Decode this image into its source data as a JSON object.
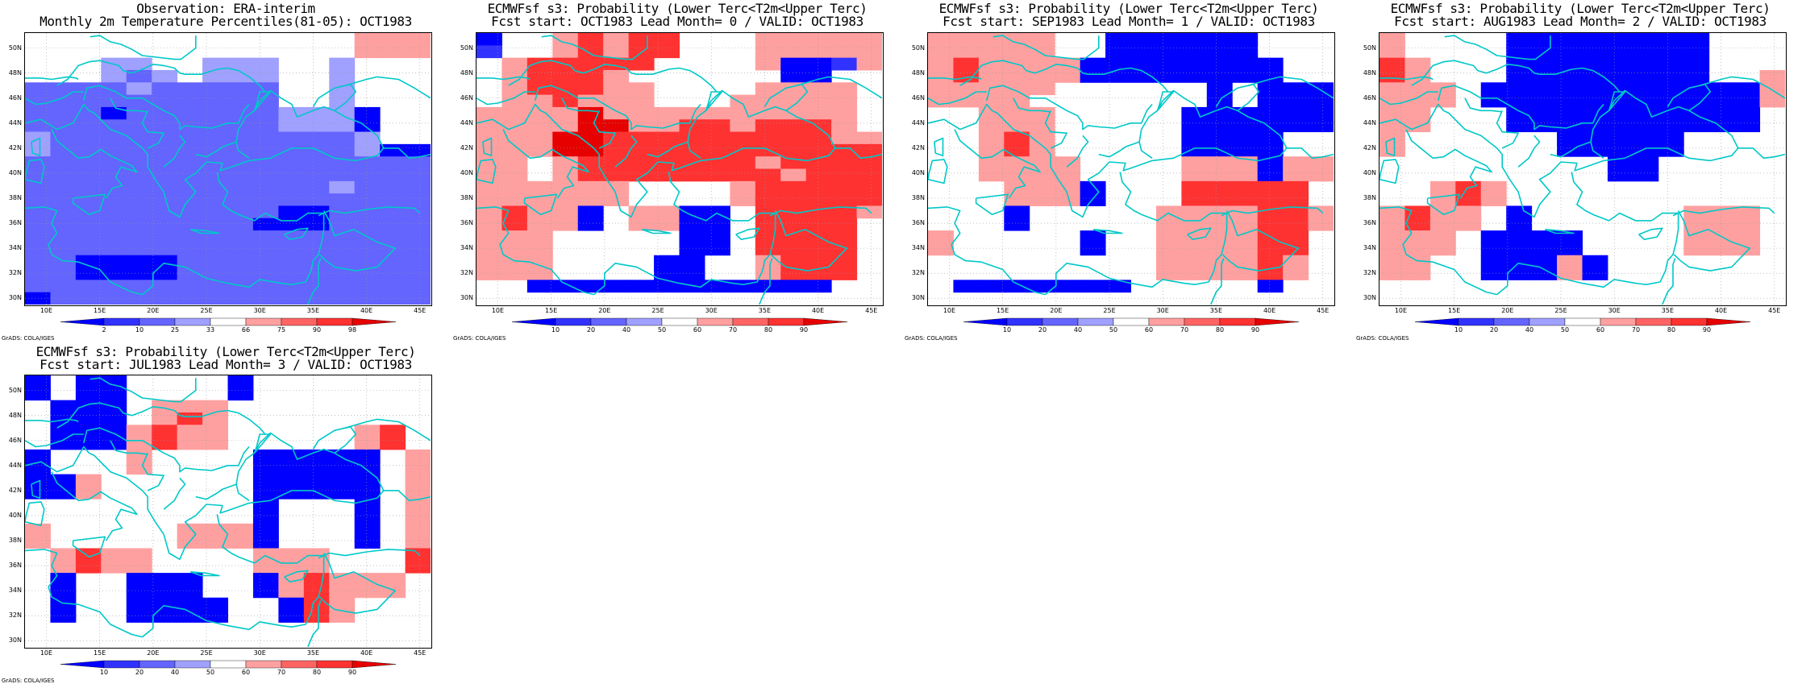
{
  "colors": {
    "blue_levels": [
      "#0000ff",
      "#3232ff",
      "#6464ff",
      "#a0a0ff"
    ],
    "red_levels": [
      "#ffa0a0",
      "#ff6464",
      "#ff3232",
      "#e60000"
    ],
    "white": "#ffffff",
    "coast": "#00c8c8"
  },
  "latitude_labels": [
    "50N",
    "48N",
    "46N",
    "44N",
    "42N",
    "40N",
    "38N",
    "36N",
    "34N",
    "32N",
    "30N"
  ],
  "longitude_labels": [
    "10E",
    "15E",
    "20E",
    "25E",
    "30E",
    "35E",
    "40E",
    "45E"
  ],
  "credit": "GrADS: COLA/IGES",
  "panels": [
    {
      "title1": "Observation: ERA-interim",
      "title2": "Monthly 2m Temperature Percentiles(81-05): OCT1983",
      "colorbar_labels": [
        "2",
        "10",
        "25",
        "33",
        "66",
        "75",
        "90",
        "98"
      ],
      "grid": [
        "wwwwwwwwwwwwwRRR",
        "wwwwwwwwwwwwwRRR",
        "wwwLLwwLLLwwLwww",
        "wwwLMLwLLLwwLwww",
        "MMMMLMMMMMwwLwww",
        "MMMMMMMMMMwwLwww",
        "MMMNMMMMMMLLLNww",
        "MMMMMMMMMMLLLNww",
        "LMMMMMMMMMMMMLww",
        "LMMMMMMMMMMMMLNN",
        "MMMMMMMMMMMMMMMM",
        "MMMMMMMMMMMMMMMM",
        "MMMMMMMMMMMMLMMM",
        "MMMMMMMMMMMMMMMM",
        "MMMMMMMMMMNNMMMM",
        "MMMMMMMMMNNNMMMM",
        "MMMMMMMMMMMMMMMM",
        "MMMMMMMMMMMMMMMM",
        "MMNNNNMMMMMMMMMM",
        "MMNNNNMMMMMMMMMM",
        "MMMMMMMMMMMMMMMM",
        "NMMMMMMMMMMMMMMM"
      ]
    },
    {
      "title1": "ECMWFsf s3: Probability (Lower Terc<T2m<Upper Terc)",
      "title2": "Fcst start: OCT1983  Lead Month= 0 / VALID: OCT1983",
      "colorbar_labels": [
        "10",
        "20",
        "40",
        "50",
        "60",
        "70",
        "80",
        "90"
      ],
      "grid": [
        "NwwRSRSSwwwRRRRR",
        "MwwRSRSSwwwRRRRR",
        "wRSSSSSwwwwRNNMR",
        "wRSSSRwwwwwwNNww",
        "wRSSSRRwwwwRRRRw",
        "wRRSRRRwwwRRRRRw",
        "RRRRDRRRRRRRRRRw",
        "RRRRDDRRSSRSSSRw",
        "RRRDDSSSSSSSSSRR",
        "RRRDDSSSSSSSSSSS",
        "RRwRSSSSSSSRSSSS",
        "RRwRSSSSSSSSRSSS",
        "RRRRRRwwwwRSSSSS",
        "RRRRRRwwwwRSSSSS",
        "RSRRNwRRNNwSSSSR",
        "RSRRNwRRNNwSSSSw",
        "RRRwwwwwNNwSSSSw",
        "RRRwwwwwNNwSSSSw",
        "RRRwwwwNNwwRSSSw",
        "RRRwwwwNNwwRSSSw",
        "wwNNNNNNNNNNNNww",
        "wwwwwwwwwwwwwwww"
      ]
    },
    {
      "title1": "ECMWFsf s3: Probability (Lower Terc<T2m<Upper Terc)",
      "title2": "Fcst start: SEP1983  Lead Month= 1 / VALID: OCT1983",
      "colorbar_labels": [
        "10",
        "20",
        "40",
        "50",
        "60",
        "70",
        "80",
        "90"
      ],
      "grid": [
        "RRRRRwwNNNNNNwww",
        "RRRRRwwNNNNNNwww",
        "RSRRRRNNNNNNNNww",
        "RSRRRRNNNNNNNNww",
        "RRRRRwwwwwwNwNNN",
        "RRRRwwwwwwwNwNNN",
        "wwRRRwwwwwNNNNNN",
        "wwRRRwwwwwNNNNNN",
        "wwRSRwwwwwNNNNww",
        "wwRSRwwwwwNNNNww",
        "wwRRRRwwwwRRRNRR",
        "wwRRRRwwwwRRRNRR",
        "wwwRRRNwwwSSSSSw",
        "wwwRRRNwwwSSSSSw",
        "wwwNwwwwwRRRRSSR",
        "wwwNwwwwwRRRRSSR",
        "RwwwwwNwwRRRRSSw",
        "RwwwwwNwwRRRRSSw",
        "wwwwwwwwwRRRRSRw",
        "wwwwwwwwwRRRRSRw",
        "wNNNNNNNwwwwwNww",
        "wwwwwwwwwwwwwwww"
      ]
    },
    {
      "title1": "ECMWFsf s3: Probability (Lower Terc<T2m<Upper Terc)",
      "title2": "Fcst start: AUG1983  Lead Month= 2 / VALID: OCT1983",
      "colorbar_labels": [
        "10",
        "20",
        "40",
        "50",
        "60",
        "70",
        "80",
        "90"
      ],
      "grid": [
        "RwwwwNNNNNNNNwww",
        "RwwwwNNNNNNNNwww",
        "SRwwwNNNNNNNNwww",
        "SRwwwNNNNNNNNwwR",
        "RRRwNNNNNNNNNNNR",
        "RRRwNNNNNNNNNNNR",
        "RRwwwNNNNNNNNNNw",
        "RRwwwNNNNNNNNNNw",
        "RwwwwwwNNNNNwwww",
        "RwwwwwwNNNNNwwww",
        "wwwwwwwwwNNwwwww",
        "wwwwwwwwwNNwwwww",
        "wwRSRwwwwwwwwwww",
        "wwRSRwwwwwwwwwww",
        "RSRRwNwwwwwwRRRw",
        "RSRRwNwwwwwwRRRw",
        "RRRwNNNNwwwwRRRw",
        "RRRwNNNNwwwwRRRw",
        "RRwwNNNRNwwwwwww",
        "RRwwNNNRNwwwwwww",
        "wwwwwwwwwwwwwwww",
        "wwwwwwwwwwwwwwww"
      ]
    },
    {
      "title1": "ECMWFsf s3: Probability (Lower Terc<T2m<Upper Terc)",
      "title2": "Fcst start: JUL1983  Lead Month= 3 / VALID: OCT1983",
      "colorbar_labels": [
        "10",
        "20",
        "40",
        "50",
        "60",
        "70",
        "80",
        "90"
      ],
      "grid": [
        "NwNNwwwwNwwwwwww",
        "NwNNwwwwNwwwwwww",
        "wNNNwRRRwwwwwwww",
        "wNNNwRSRwwwwwwww",
        "wNNNRSRRwwwwwRSw",
        "wNNNRSRRwwwwwRSw",
        "NwwwRwwwwNNNNNwR",
        "NwwwRwwwwNNNNNwR",
        "NNRwwwwwwNNNNNwR",
        "NNRwwwwwwNNNNNwR",
        "wwwwwwwwwNwwwNwR",
        "wwwwwwwwwNwwwNwR",
        "RwwwwwRRRNwwwNwR",
        "RwwwwwRRRNwwwNwR",
        "wRSRRwwwwRRRwwwS",
        "wRSRRwwwwRRRwwwS",
        "wNwwNNNwwNRSRRRw",
        "wNwwNNNwwNRSRRRw",
        "wNwwNNNNwwNSRwww",
        "wNwwNNNNwwNSRwww",
        "wwwwwwwwwwwwwwww",
        "wwwwwwwwwwwwwwww"
      ]
    }
  ]
}
